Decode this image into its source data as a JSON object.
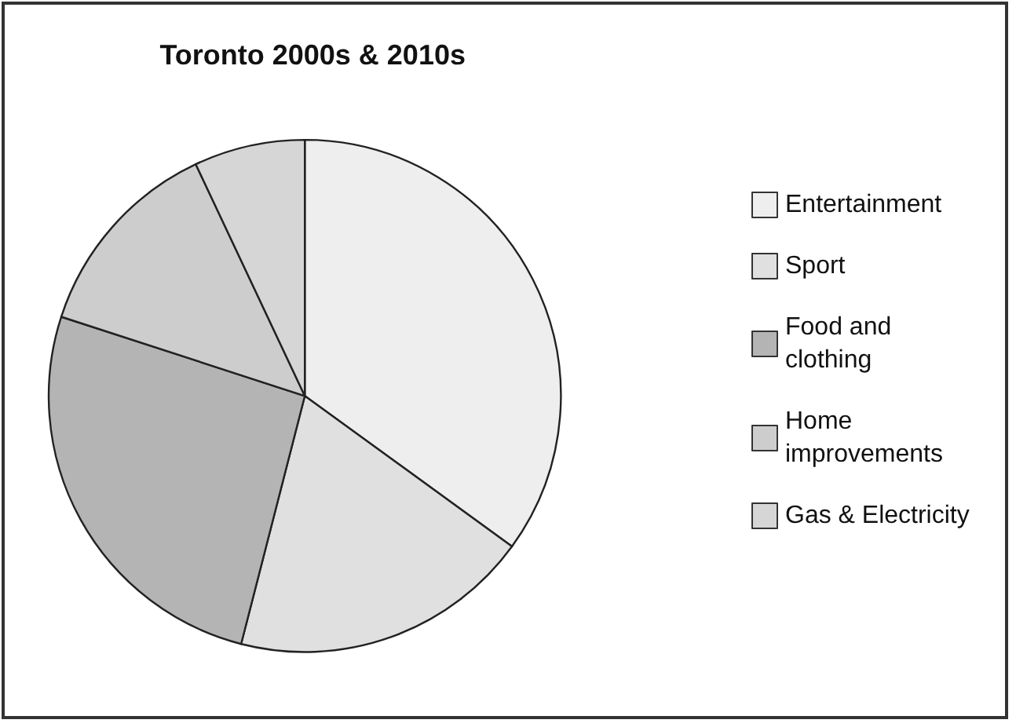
{
  "chart_data": {
    "type": "pie",
    "title": "Toronto 2000s & 2010s",
    "categories": [
      "Entertainment",
      "Sport",
      "Food and clothing",
      "Home improvements",
      "Gas & Electricity"
    ],
    "values": [
      35,
      19,
      26,
      13,
      7
    ],
    "colors": [
      "#eeeeee",
      "#e0e0e0",
      "#b4b4b4",
      "#cdcdcd",
      "#d6d6d6"
    ],
    "legend": "right"
  }
}
